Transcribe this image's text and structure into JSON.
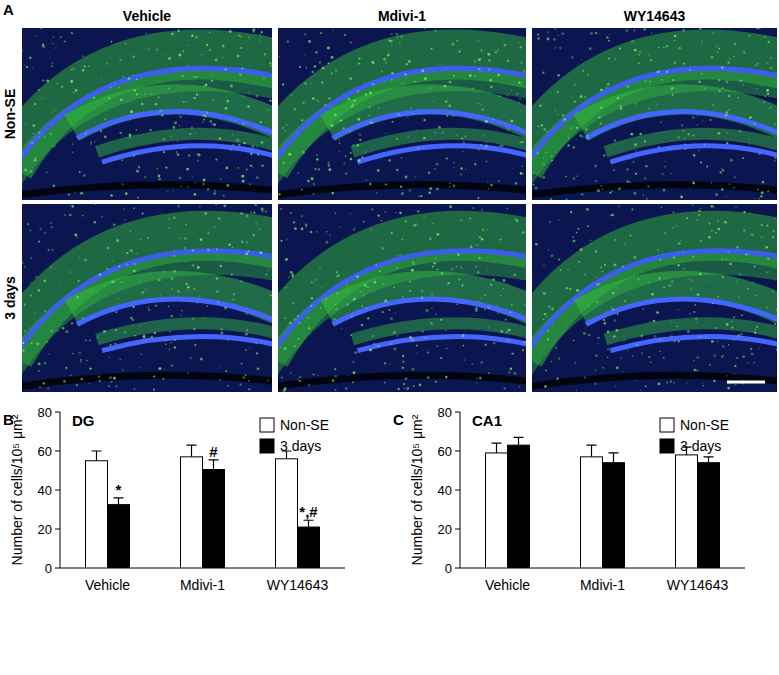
{
  "figure": {
    "panel_labels": [
      "A",
      "B",
      "C"
    ],
    "image_columns": [
      "Vehicle",
      "Mdivi-1",
      "WY14643"
    ],
    "image_rows": [
      "Non-SE",
      "3 days"
    ]
  },
  "chart_data": [
    {
      "type": "bar",
      "title": "DG",
      "categories": [
        "Vehicle",
        "Mdivi-1",
        "WY14643"
      ],
      "ylabel": "Number of cells/10⁵ μm²",
      "ylim": [
        0,
        80
      ],
      "yticks": [
        0,
        20,
        40,
        60,
        80
      ],
      "legend": "upper right",
      "series": [
        {
          "name": "Non-SE",
          "color": "#ffffff",
          "values": [
            55,
            57,
            56
          ],
          "errors": [
            5,
            6,
            4
          ]
        },
        {
          "name": "3 days",
          "color": "#000000",
          "values": [
            32.5,
            50.5,
            21
          ],
          "errors": [
            3.5,
            5,
            3.5
          ]
        }
      ],
      "annotations": [
        {
          "text": "*",
          "category": "Vehicle",
          "series": "3 days"
        },
        {
          "text": "#",
          "category": "Mdivi-1",
          "series": "3 days"
        },
        {
          "text": "*,#",
          "category": "WY14643",
          "series": "3 days"
        }
      ]
    },
    {
      "type": "bar",
      "title": "CA1",
      "categories": [
        "Vehicle",
        "Mdivi-1",
        "WY14643"
      ],
      "ylabel": "Number of cells/10⁵ μm²",
      "ylim": [
        0,
        80
      ],
      "yticks": [
        0,
        20,
        40,
        60,
        80
      ],
      "legend": "upper right",
      "series": [
        {
          "name": "Non-SE",
          "color": "#ffffff",
          "values": [
            59,
            57,
            58
          ],
          "errors": [
            5,
            6,
            4
          ]
        },
        {
          "name": "3 days",
          "color": "#000000",
          "values": [
            63,
            54,
            54
          ],
          "errors": [
            4,
            5,
            3
          ]
        }
      ],
      "annotations": []
    }
  ]
}
